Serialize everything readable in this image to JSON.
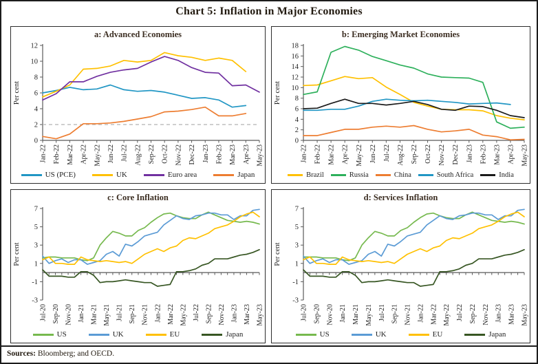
{
  "page": {
    "title": "Chart 5: Inflation in Major Economies",
    "sources": {
      "label": "Sources:",
      "text": " Bloomberg; and OECD."
    }
  },
  "colors": {
    "teal_blue": "#2096C4",
    "gold": "#FFC000",
    "purple": "#7030A0",
    "orange_red": "#ED7D31",
    "emerald": "#2DB05B",
    "black": "#1A1A1A",
    "light_green": "#76B94E",
    "soft_blue": "#5B9BD5",
    "dark_green": "#375623",
    "refline_gray": "#BFBFBF"
  },
  "chart_data": [
    {
      "id": "a",
      "type": "line",
      "title": "a: Advanced Economies",
      "ylabel": "Per cent",
      "ylim": [
        0,
        12
      ],
      "yticks": [
        0,
        2,
        4,
        6,
        8,
        10,
        12
      ],
      "refline": 2,
      "label_every": 1,
      "legend_position": "bottom",
      "grid": false,
      "categories": [
        "Jan-22",
        "Feb-22",
        "Mar-22",
        "Apr-22",
        "May-22",
        "Jun-22",
        "Jul-22",
        "Aug-22",
        "Sep-22",
        "Oct-22",
        "Nov-22",
        "Dec-22",
        "Jan-23",
        "Feb-23",
        "Mar-23",
        "Apr-23",
        "May-23"
      ],
      "series": [
        {
          "name": "US (PCE)",
          "color": "#2096C4",
          "values": [
            6.0,
            6.3,
            6.7,
            6.4,
            6.5,
            7.0,
            6.4,
            6.2,
            6.3,
            6.1,
            5.7,
            5.3,
            5.4,
            5.1,
            4.2,
            4.4,
            null
          ]
        },
        {
          "name": "UK",
          "color": "#FFC000",
          "values": [
            5.5,
            6.2,
            7.0,
            9.0,
            9.1,
            9.4,
            10.1,
            9.9,
            10.1,
            11.1,
            10.7,
            10.5,
            10.1,
            10.4,
            10.1,
            8.7,
            null
          ]
        },
        {
          "name": "Euro area",
          "color": "#7030A0",
          "values": [
            5.1,
            5.9,
            7.4,
            7.4,
            8.1,
            8.6,
            8.9,
            9.1,
            9.9,
            10.6,
            10.1,
            9.2,
            8.6,
            8.5,
            6.9,
            7.0,
            6.1
          ]
        },
        {
          "name": "Japan",
          "color": "#ED7D31",
          "values": [
            0.5,
            0.2,
            0.8,
            2.1,
            2.1,
            2.2,
            2.4,
            2.7,
            3.0,
            3.6,
            3.7,
            3.9,
            4.2,
            3.1,
            3.1,
            3.4,
            null
          ]
        }
      ]
    },
    {
      "id": "b",
      "type": "line",
      "title": "b: Emerging Market Economies",
      "ylabel": "Per cent",
      "ylim": [
        0,
        18
      ],
      "yticks": [
        0,
        2,
        4,
        6,
        8,
        10,
        12,
        14,
        16,
        18
      ],
      "label_every": 1,
      "legend_position": "bottom",
      "grid": false,
      "categories": [
        "Jan-22",
        "Feb-22",
        "Mar-22",
        "Apr-22",
        "May-22",
        "Jun-22",
        "Jul-22",
        "Aug-22",
        "Sep-22",
        "Oct-22",
        "Nov-22",
        "Dec-22",
        "Jan-23",
        "Feb-23",
        "Mar-23",
        "Apr-23",
        "May-23"
      ],
      "series": [
        {
          "name": "Brazil",
          "color": "#FFC000",
          "values": [
            10.4,
            10.5,
            11.3,
            12.1,
            11.7,
            11.9,
            10.1,
            8.7,
            7.2,
            6.5,
            5.9,
            5.8,
            5.8,
            5.6,
            4.7,
            4.2,
            3.9
          ]
        },
        {
          "name": "Russia",
          "color": "#2DB05B",
          "values": [
            8.7,
            9.2,
            16.7,
            17.8,
            17.1,
            15.9,
            15.1,
            14.3,
            13.7,
            12.6,
            12.0,
            11.9,
            11.8,
            11.0,
            3.5,
            2.3,
            2.5
          ]
        },
        {
          "name": "China",
          "color": "#ED7D31",
          "values": [
            0.9,
            0.9,
            1.5,
            2.1,
            2.1,
            2.5,
            2.7,
            2.5,
            2.8,
            2.1,
            1.6,
            1.8,
            2.1,
            1.0,
            0.7,
            0.1,
            0.2
          ]
        },
        {
          "name": "South Africa",
          "color": "#2096C4",
          "values": [
            5.7,
            5.7,
            5.9,
            5.9,
            6.5,
            7.4,
            7.8,
            7.6,
            7.5,
            7.6,
            7.4,
            7.2,
            6.9,
            7.0,
            7.1,
            6.8,
            null
          ]
        },
        {
          "name": "India",
          "color": "#1A1A1A",
          "values": [
            6.0,
            6.1,
            7.0,
            7.8,
            7.0,
            7.0,
            6.7,
            7.0,
            7.4,
            6.8,
            5.9,
            5.7,
            6.5,
            6.4,
            5.7,
            4.7,
            4.3
          ]
        }
      ]
    },
    {
      "id": "c",
      "type": "line",
      "title": "c: Core Inflation",
      "ylabel": "Per cent",
      "ylim": [
        -3,
        7
      ],
      "yticks": [
        -3,
        -1,
        1,
        3,
        5,
        7
      ],
      "label_every": 2,
      "legend_position": "bottom",
      "grid": false,
      "categories": [
        "Jul-20",
        "Aug-20",
        "Sep-20",
        "Oct-20",
        "Nov-20",
        "Dec-20",
        "Jan-21",
        "Feb-21",
        "Mar-21",
        "Apr-21",
        "May-21",
        "Jun-21",
        "Jul-21",
        "Aug-21",
        "Sep-21",
        "Oct-21",
        "Nov-21",
        "Dec-21",
        "Jan-22",
        "Feb-22",
        "Mar-22",
        "Apr-22",
        "May-22",
        "Jun-22",
        "Jul-22",
        "Aug-22",
        "Sep-22",
        "Oct-22",
        "Nov-22",
        "Dec-22",
        "Jan-23",
        "Feb-23",
        "Mar-23",
        "Apr-23",
        "May-23"
      ],
      "series": [
        {
          "name": "US",
          "color": "#76B94E",
          "values": [
            1.6,
            1.7,
            1.7,
            1.6,
            1.6,
            1.6,
            1.4,
            1.3,
            1.6,
            3.0,
            3.8,
            4.5,
            4.3,
            4.0,
            4.0,
            4.6,
            4.9,
            5.5,
            6.0,
            6.4,
            6.5,
            6.2,
            6.0,
            5.9,
            5.9,
            6.3,
            6.6,
            6.3,
            6.0,
            5.7,
            5.6,
            5.5,
            5.6,
            5.5,
            5.3
          ]
        },
        {
          "name": "UK",
          "color": "#5B9BD5",
          "values": [
            1.8,
            1.0,
            1.3,
            1.5,
            1.1,
            1.4,
            1.4,
            0.9,
            1.1,
            1.3,
            2.0,
            2.3,
            1.8,
            3.1,
            2.9,
            3.4,
            4.0,
            4.2,
            4.4,
            5.2,
            5.7,
            6.2,
            5.9,
            5.8,
            6.2,
            6.3,
            6.5,
            6.5,
            6.3,
            6.3,
            5.8,
            6.2,
            6.2,
            6.8,
            6.9
          ]
        },
        {
          "name": "EU",
          "color": "#FFC000",
          "values": [
            1.4,
            1.7,
            1.0,
            1.0,
            0.9,
            0.9,
            1.7,
            1.4,
            1.3,
            1.2,
            1.3,
            1.2,
            1.1,
            1.2,
            1.0,
            1.5,
            2.0,
            2.3,
            2.6,
            2.3,
            2.7,
            2.9,
            3.5,
            3.8,
            3.7,
            4.0,
            4.3,
            4.8,
            5.0,
            5.2,
            5.6,
            6.1,
            6.4,
            6.6,
            6.1
          ]
        },
        {
          "name": "Japan",
          "color": "#375623",
          "values": [
            0.3,
            -0.4,
            -0.4,
            -0.4,
            -0.5,
            -0.5,
            0.1,
            0.1,
            -0.3,
            -1.1,
            -1.0,
            -1.0,
            -0.9,
            -0.8,
            -0.9,
            -1.0,
            -1.1,
            -1.1,
            -1.5,
            -1.4,
            -1.3,
            0.1,
            0.1,
            0.2,
            0.4,
            0.8,
            1.0,
            1.5,
            1.5,
            1.5,
            1.7,
            1.9,
            2.0,
            2.2,
            2.5
          ]
        }
      ]
    },
    {
      "id": "d",
      "type": "line",
      "title": "d: Services Inflation",
      "ylabel": "Per cent",
      "ylim": [
        -3,
        7
      ],
      "yticks": [
        -3,
        -1,
        1,
        3,
        5,
        7
      ],
      "label_every": 2,
      "legend_position": "bottom",
      "grid": false,
      "categories": [
        "Jul-20",
        "Aug-20",
        "Sep-20",
        "Oct-20",
        "Nov-20",
        "Dec-20",
        "Jan-21",
        "Feb-21",
        "Mar-21",
        "Apr-21",
        "May-21",
        "Jun-21",
        "Jul-21",
        "Aug-21",
        "Sep-21",
        "Oct-21",
        "Nov-21",
        "Dec-21",
        "Jan-22",
        "Feb-22",
        "Mar-22",
        "Apr-22",
        "May-22",
        "Jun-22",
        "Jul-22",
        "Aug-22",
        "Sep-22",
        "Oct-22",
        "Nov-22",
        "Dec-22",
        "Jan-23",
        "Feb-23",
        "Mar-23",
        "Apr-23",
        "May-23"
      ],
      "series": [
        {
          "name": "US",
          "color": "#76B94E",
          "values": [
            1.7,
            1.7,
            1.7,
            1.6,
            1.6,
            1.6,
            1.4,
            1.3,
            1.6,
            3.0,
            3.8,
            4.5,
            4.3,
            4.0,
            4.0,
            4.6,
            4.9,
            5.5,
            6.0,
            6.4,
            6.5,
            6.2,
            6.0,
            5.9,
            5.9,
            6.3,
            6.6,
            6.3,
            6.0,
            5.7,
            5.6,
            5.5,
            5.6,
            5.5,
            5.3
          ]
        },
        {
          "name": "UK",
          "color": "#5B9BD5",
          "values": [
            1.8,
            1.0,
            1.3,
            1.5,
            1.1,
            1.4,
            1.4,
            0.9,
            1.1,
            1.3,
            2.0,
            2.3,
            1.8,
            3.1,
            2.9,
            3.4,
            4.0,
            4.2,
            4.4,
            5.2,
            5.7,
            6.2,
            5.9,
            5.8,
            6.2,
            6.3,
            6.5,
            6.5,
            6.3,
            6.3,
            5.8,
            6.2,
            6.2,
            6.8,
            6.9
          ]
        },
        {
          "name": "EU",
          "color": "#FFC000",
          "values": [
            1.4,
            1.7,
            1.0,
            1.0,
            0.9,
            0.9,
            1.7,
            1.4,
            1.3,
            1.2,
            1.3,
            1.2,
            1.1,
            1.2,
            1.0,
            1.5,
            2.0,
            2.3,
            2.6,
            2.3,
            2.7,
            2.9,
            3.5,
            3.8,
            3.7,
            4.0,
            4.3,
            4.8,
            5.0,
            5.2,
            5.6,
            6.1,
            6.4,
            6.6,
            6.1
          ]
        },
        {
          "name": "Japan",
          "color": "#375623",
          "values": [
            0.3,
            -0.4,
            -0.4,
            -0.4,
            -0.5,
            -0.5,
            0.1,
            0.1,
            -0.3,
            -1.1,
            -1.0,
            -1.0,
            -0.9,
            -0.8,
            -0.9,
            -1.0,
            -1.1,
            -1.1,
            -1.5,
            -1.4,
            -1.3,
            0.1,
            0.1,
            0.2,
            0.4,
            0.8,
            1.0,
            1.5,
            1.5,
            1.5,
            1.7,
            1.9,
            2.0,
            2.2,
            2.5
          ]
        }
      ]
    }
  ]
}
